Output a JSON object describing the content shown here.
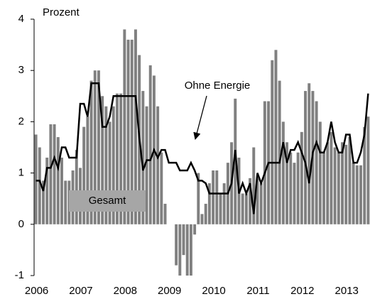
{
  "chart_data": {
    "type": "bar-line",
    "y_label": "Prozent",
    "categories": [
      "2006",
      null,
      null,
      null,
      null,
      null,
      null,
      null,
      null,
      null,
      null,
      null,
      "2007",
      null,
      null,
      null,
      null,
      null,
      null,
      null,
      null,
      null,
      null,
      null,
      "2008",
      null,
      null,
      null,
      null,
      null,
      null,
      null,
      null,
      null,
      null,
      null,
      "2009",
      null,
      null,
      null,
      null,
      null,
      null,
      null,
      null,
      null,
      null,
      null,
      "2010",
      null,
      null,
      null,
      null,
      null,
      null,
      null,
      null,
      null,
      null,
      null,
      "2011",
      null,
      null,
      null,
      null,
      null,
      null,
      null,
      null,
      null,
      null,
      null,
      "2012",
      null,
      null,
      null,
      null,
      null,
      null,
      null,
      null,
      null,
      null,
      null,
      "2013",
      null,
      null,
      null,
      null,
      null,
      null
    ],
    "series": [
      {
        "name": "Gesamt",
        "kind": "bar",
        "color": "#808080",
        "values": [
          1.75,
          1.5,
          0.85,
          1.3,
          1.95,
          1.95,
          1.7,
          1.3,
          0.85,
          0.85,
          1.05,
          1.45,
          1.1,
          1.9,
          2.1,
          2.8,
          3.0,
          3.0,
          2.5,
          2.3,
          2.0,
          2.3,
          2.55,
          2.55,
          3.8,
          3.6,
          3.6,
          3.8,
          3.3,
          2.6,
          2.3,
          3.1,
          2.9,
          2.3,
          1.4,
          0.4,
          0,
          0,
          -0.8,
          -1.0,
          -0.6,
          -1.0,
          -1.0,
          -0.2,
          1.0,
          0.2,
          0.4,
          0.8,
          1.05,
          1.05,
          0.6,
          0.8,
          1.2,
          1.6,
          2.45,
          1.3,
          0.6,
          0.6,
          0.9,
          1.5,
          0.9,
          0.8,
          2.4,
          2.4,
          3.2,
          3.4,
          2.8,
          2.0,
          1.6,
          1.4,
          1.2,
          1.4,
          1.8,
          2.6,
          2.75,
          2.6,
          2.4,
          2.0,
          1.4,
          1.6,
          1.8,
          1.5,
          1.4,
          1.6,
          1.55,
          1.7,
          1.2,
          1.15,
          1.15,
          1.9,
          2.1
        ]
      },
      {
        "name": "Ohne Energie",
        "kind": "line",
        "color": "#000000",
        "values": [
          0.85,
          0.85,
          0.65,
          1.1,
          1.1,
          1.3,
          1.1,
          1.5,
          1.5,
          1.3,
          1.3,
          1.3,
          2.35,
          2.35,
          2.1,
          2.75,
          2.75,
          2.75,
          1.9,
          1.9,
          2.1,
          2.5,
          2.5,
          2.5,
          2.5,
          2.5,
          2.5,
          2.5,
          1.7,
          1.05,
          1.25,
          1.25,
          1.45,
          1.3,
          1.45,
          1.45,
          1.2,
          1.2,
          1.2,
          1.05,
          1.05,
          1.05,
          1.2,
          1.05,
          0.85,
          0.85,
          0.8,
          0.6,
          0.6,
          0.6,
          0.6,
          0.6,
          0.6,
          0.8,
          1.45,
          0.6,
          0.8,
          0.6,
          0.8,
          0.2,
          1.0,
          0.8,
          1.0,
          1.2,
          1.2,
          1.2,
          1.2,
          1.6,
          1.2,
          1.45,
          1.45,
          1.6,
          1.4,
          1.2,
          0.8,
          1.4,
          1.6,
          1.4,
          1.4,
          1.6,
          2.0,
          1.6,
          1.4,
          1.4,
          1.75,
          1.75,
          1.2,
          1.2,
          1.4,
          1.75,
          2.55
        ]
      }
    ],
    "ylim": [
      -1,
      4
    ],
    "yticks": [
      -1,
      0,
      1,
      2,
      3,
      4
    ],
    "grid": false
  }
}
